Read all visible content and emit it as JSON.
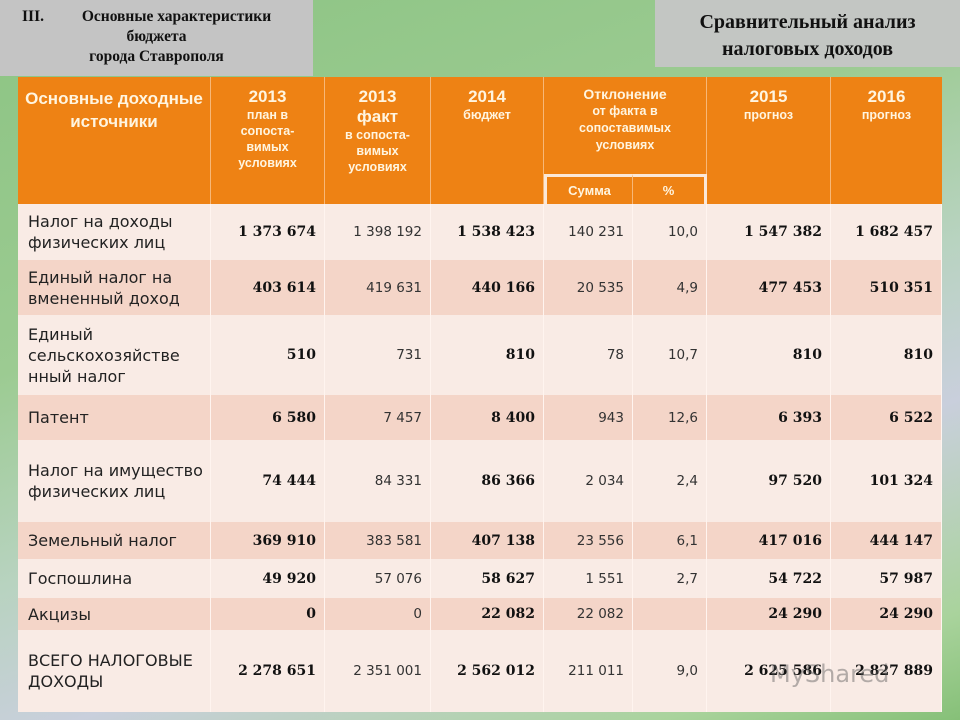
{
  "slide": {
    "section_number": "III.",
    "left_title_lines": [
      "Основные характеристики",
      "бюджета",
      "города Ставрополя"
    ],
    "right_title_lines": [
      "Сравнительный анализ",
      "налоговых доходов"
    ]
  },
  "table": {
    "headers": [
      {
        "big": "Основные доходные источники",
        "small": ""
      },
      {
        "big": "2013",
        "small": "план в сопоста-вимых условиях"
      },
      {
        "big": "2013 факт",
        "small": "в сопоста-вимых условиях"
      },
      {
        "big": "2014",
        "small": "бюджет"
      },
      {
        "big": "Отклонение",
        "small": "от факта в сопоставимых условиях"
      },
      {
        "big": "2015",
        "small": "прогноз"
      },
      {
        "big": "2016",
        "small": "прогноз"
      }
    ],
    "subheaders": [
      "Сумма",
      "%"
    ],
    "rows": [
      {
        "label": "Налог на доходы физических лиц",
        "plan2013": "1 373 674",
        "fact2013": "1 398 192",
        "budget2014": "1 538 423",
        "dev_sum": "140 231",
        "dev_pct": "10,0",
        "forecast2015": "1 547 382",
        "forecast2016": "1 682 457"
      },
      {
        "label": "Единый налог на вмененный доход",
        "plan2013": "403 614",
        "fact2013": "419 631",
        "budget2014": "440 166",
        "dev_sum": "20 535",
        "dev_pct": "4,9",
        "forecast2015": "477 453",
        "forecast2016": "510 351"
      },
      {
        "label": "Единый сельскохозяйстве нный налог",
        "plan2013": "510",
        "fact2013": "731",
        "budget2014": "810",
        "dev_sum": "78",
        "dev_pct": "10,7",
        "forecast2015": "810",
        "forecast2016": "810"
      },
      {
        "label": "Патент",
        "plan2013": "6 580",
        "fact2013": "7 457",
        "budget2014": "8 400",
        "dev_sum": "943",
        "dev_pct": "12,6",
        "forecast2015": "6 393",
        "forecast2016": "6 522"
      },
      {
        "label": "Налог на имущество физических лиц",
        "plan2013": "74 444",
        "fact2013": "84 331",
        "budget2014": "86 366",
        "dev_sum": "2 034",
        "dev_pct": "2,4",
        "forecast2015": "97 520",
        "forecast2016": "101 324"
      },
      {
        "label": "Земельный налог",
        "plan2013": "369 910",
        "fact2013": "383 581",
        "budget2014": "407 138",
        "dev_sum": "23 556",
        "dev_pct": "6,1",
        "forecast2015": "417 016",
        "forecast2016": "444 147"
      },
      {
        "label": "Госпошлина",
        "plan2013": "49 920",
        "fact2013": "57 076",
        "budget2014": "58 627",
        "dev_sum": "1 551",
        "dev_pct": "2,7",
        "forecast2015": "54 722",
        "forecast2016": "57 987"
      },
      {
        "label": "Акцизы",
        "plan2013": "0",
        "fact2013": "0",
        "budget2014": "22 082",
        "dev_sum": "22 082",
        "dev_pct": "",
        "forecast2015": "24 290",
        "forecast2016": "24 290"
      },
      {
        "label": "ВСЕГО НАЛОГОВЫЕ ДОХОДЫ",
        "plan2013": "2 278 651",
        "fact2013": "2 351 001",
        "budget2014": "2 562 012",
        "dev_sum": "211 011",
        "dev_pct": "9,0",
        "forecast2015": "2 625 586",
        "forecast2016": "2 827 889"
      }
    ]
  },
  "watermark": "MyShared",
  "colors": {
    "header_orange": "#ee8214",
    "row_light": "#f9ebe5",
    "row_dark": "#f4d5c8",
    "title_gray": "#c4c4c4"
  }
}
